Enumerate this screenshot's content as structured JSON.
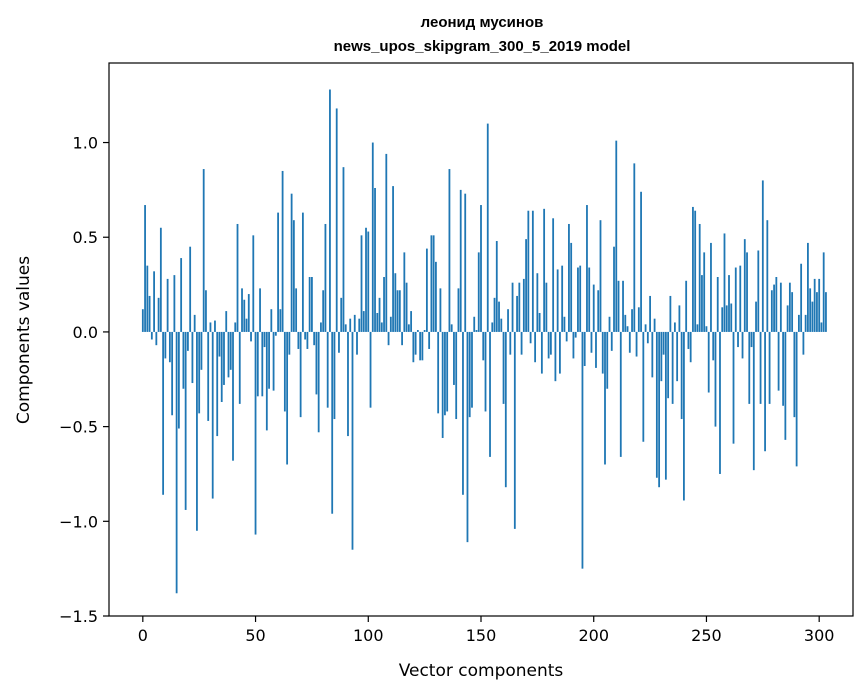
{
  "chart_data": {
    "type": "bar",
    "title": "леонид мусинов",
    "subtitle": "news_upos_skipgram_300_5_2019 model",
    "xlabel": "Vector components",
    "ylabel": "Components values",
    "xlim": [
      -15,
      315
    ],
    "ylim": [
      -1.5,
      1.42
    ],
    "xticks": [
      0,
      50,
      100,
      150,
      200,
      250,
      300
    ],
    "xtick_labels": [
      "0",
      "50",
      "100",
      "150",
      "200",
      "250",
      "300"
    ],
    "yticks": [
      -1.5,
      -1.0,
      -0.5,
      0.0,
      0.5,
      1.0
    ],
    "ytick_labels": [
      "−1.5",
      "−1.0",
      "−0.5",
      "0.0",
      "0.5",
      "1.0"
    ],
    "grid": false,
    "bar_color": "#1f77b4",
    "x_start": 0,
    "values": [
      0.12,
      0.67,
      0.35,
      0.19,
      -0.04,
      0.32,
      -0.07,
      0.18,
      0.55,
      -0.86,
      -0.14,
      0.28,
      -0.16,
      -0.44,
      0.3,
      -1.38,
      -0.51,
      0.39,
      -0.3,
      -0.94,
      -0.1,
      0.45,
      -0.27,
      0.09,
      -1.05,
      -0.43,
      -0.2,
      0.86,
      0.22,
      -0.47,
      0.05,
      -0.88,
      0.06,
      -0.55,
      -0.13,
      -0.37,
      -0.28,
      0.11,
      -0.24,
      -0.2,
      -0.68,
      0.05,
      0.57,
      -0.38,
      0.23,
      0.17,
      0.07,
      0.2,
      -0.05,
      0.51,
      -1.07,
      -0.34,
      0.23,
      -0.34,
      -0.08,
      -0.52,
      -0.3,
      0.12,
      -0.31,
      -0.02,
      0.63,
      0.12,
      0.85,
      -0.42,
      -0.7,
      -0.12,
      0.73,
      0.59,
      0.23,
      -0.09,
      -0.45,
      0.63,
      -0.04,
      -0.09,
      0.29,
      0.29,
      -0.07,
      -0.33,
      -0.53,
      0.05,
      0.22,
      0.57,
      -0.4,
      1.28,
      -0.96,
      -0.46,
      1.18,
      -0.11,
      0.18,
      0.87,
      0.04,
      -0.55,
      0.07,
      -1.15,
      0.09,
      -0.12,
      0.07,
      0.51,
      0.11,
      0.55,
      0.53,
      -0.4,
      1.0,
      0.76,
      0.1,
      0.18,
      0.05,
      0.29,
      0.94,
      -0.07,
      0.08,
      0.77,
      0.31,
      0.22,
      0.22,
      -0.07,
      0.42,
      0.26,
      0.04,
      0.11,
      -0.16,
      -0.12,
      0.01,
      -0.15,
      -0.15,
      0.01,
      0.44,
      -0.09,
      0.51,
      0.51,
      0.37,
      -0.43,
      0.23,
      -0.56,
      -0.44,
      -0.42,
      0.86,
      0.04,
      -0.28,
      -0.46,
      0.23,
      0.75,
      -0.86,
      0.73,
      -1.11,
      -0.45,
      -0.4,
      0.08,
      0.01,
      0.42,
      0.67,
      -0.15,
      -0.42,
      1.1,
      -0.66,
      0.05,
      0.18,
      0.48,
      0.16,
      0.07,
      -0.38,
      -0.82,
      0.12,
      -0.12,
      0.26,
      -1.04,
      0.19,
      0.26,
      -0.12,
      0.28,
      0.49,
      0.64,
      -0.06,
      0.64,
      -0.16,
      0.31,
      0.1,
      -0.22,
      0.65,
      0.26,
      -0.14,
      -0.12,
      0.6,
      -0.26,
      0.33,
      -0.22,
      0.35,
      0.08,
      -0.05,
      0.57,
      0.47,
      -0.14,
      -0.03,
      0.34,
      0.35,
      -1.25,
      -0.18,
      0.67,
      0.34,
      -0.11,
      0.25,
      -0.19,
      0.22,
      0.59,
      -0.22,
      -0.7,
      -0.3,
      0.08,
      -0.1,
      0.45,
      1.01,
      0.27,
      -0.66,
      0.27,
      0.09,
      0.03,
      -0.11,
      0.12,
      0.89,
      -0.13,
      0.13,
      0.74,
      -0.58,
      0.04,
      -0.06,
      0.19,
      -0.24,
      0.07,
      -0.77,
      -0.82,
      -0.26,
      -0.12,
      -0.78,
      -0.35,
      0.19,
      -0.38,
      0.05,
      -0.26,
      0.14,
      -0.46,
      -0.89,
      0.27,
      -0.09,
      -0.16,
      0.66,
      0.64,
      0.04,
      0.57,
      0.3,
      0.42,
      0.03,
      -0.32,
      0.47,
      -0.15,
      -0.5,
      0.29,
      -0.75,
      0.13,
      0.52,
      0.14,
      0.3,
      0.15,
      -0.59,
      0.34,
      -0.08,
      0.35,
      -0.14,
      0.49,
      0.42,
      -0.38,
      -0.08,
      -0.73,
      0.16,
      0.43,
      -0.38,
      0.8,
      -0.63,
      0.59,
      -0.38,
      0.22,
      0.25,
      0.29,
      -0.31,
      0.26,
      -0.39,
      -0.57,
      0.14,
      0.26,
      0.21,
      -0.45,
      -0.71,
      0.09,
      0.36,
      -0.12,
      0.09,
      0.47,
      0.23,
      0.16,
      0.28,
      0.21,
      0.28,
      0.05,
      0.42,
      0.21
    ]
  }
}
